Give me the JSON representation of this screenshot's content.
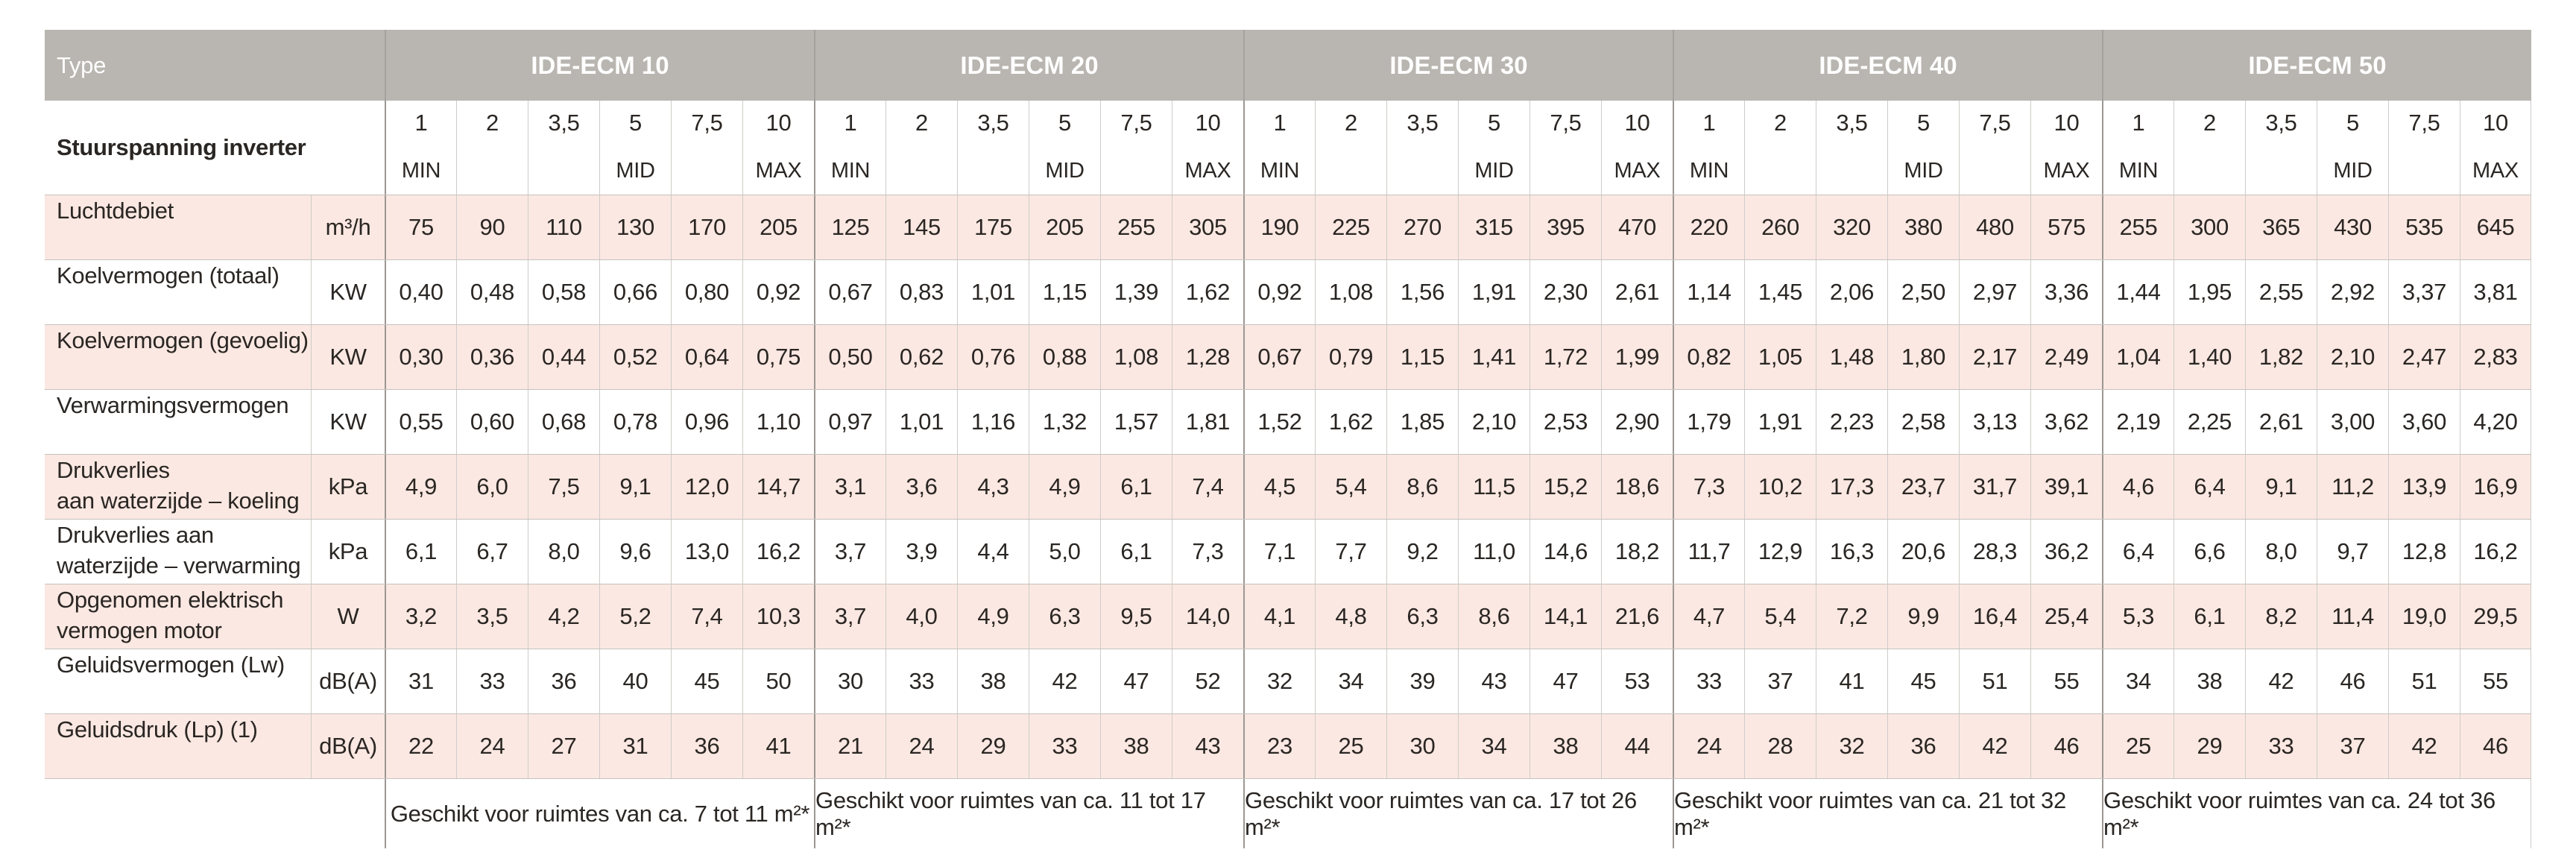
{
  "colors": {
    "header_bg": "#b9b5b0",
    "row_tint": "#fbe8e2",
    "strong_rule": "#9c9893",
    "light_rule": "#cfccc8",
    "text": "#2a2623",
    "header_text": "#ffffff"
  },
  "table": {
    "corner_label": "Type",
    "inverter_row_label": "Stuurspanning inverter",
    "speeds": [
      "1",
      "2",
      "3,5",
      "5",
      "7,5",
      "10"
    ],
    "speed_marks": [
      "MIN",
      "",
      "",
      "MID",
      "",
      "MAX"
    ],
    "groups": [
      "IDE-ECM 10",
      "IDE-ECM 20",
      "IDE-ECM 30",
      "IDE-ECM 40",
      "IDE-ECM 50"
    ],
    "rows": [
      {
        "label_lines": [
          "Luchtdebiet"
        ],
        "unit": "m³/h",
        "values": [
          [
            "75",
            "90",
            "110",
            "130",
            "170",
            "205"
          ],
          [
            "125",
            "145",
            "175",
            "205",
            "255",
            "305"
          ],
          [
            "190",
            "225",
            "270",
            "315",
            "395",
            "470"
          ],
          [
            "220",
            "260",
            "320",
            "380",
            "480",
            "575"
          ],
          [
            "255",
            "300",
            "365",
            "430",
            "535",
            "645"
          ]
        ]
      },
      {
        "label_lines": [
          "Koelvermogen (totaal)"
        ],
        "unit": "KW",
        "values": [
          [
            "0,40",
            "0,48",
            "0,58",
            "0,66",
            "0,80",
            "0,92"
          ],
          [
            "0,67",
            "0,83",
            "1,01",
            "1,15",
            "1,39",
            "1,62"
          ],
          [
            "0,92",
            "1,08",
            "1,56",
            "1,91",
            "2,30",
            "2,61"
          ],
          [
            "1,14",
            "1,45",
            "2,06",
            "2,50",
            "2,97",
            "3,36"
          ],
          [
            "1,44",
            "1,95",
            "2,55",
            "2,92",
            "3,37",
            "3,81"
          ]
        ]
      },
      {
        "label_lines": [
          "Koelvermogen (gevoelig)"
        ],
        "unit": "KW",
        "values": [
          [
            "0,30",
            "0,36",
            "0,44",
            "0,52",
            "0,64",
            "0,75"
          ],
          [
            "0,50",
            "0,62",
            "0,76",
            "0,88",
            "1,08",
            "1,28"
          ],
          [
            "0,67",
            "0,79",
            "1,15",
            "1,41",
            "1,72",
            "1,99"
          ],
          [
            "0,82",
            "1,05",
            "1,48",
            "1,80",
            "2,17",
            "2,49"
          ],
          [
            "1,04",
            "1,40",
            "1,82",
            "2,10",
            "2,47",
            "2,83"
          ]
        ]
      },
      {
        "label_lines": [
          "Verwarmingsvermogen"
        ],
        "unit": "KW",
        "values": [
          [
            "0,55",
            "0,60",
            "0,68",
            "0,78",
            "0,96",
            "1,10"
          ],
          [
            "0,97",
            "1,01",
            "1,16",
            "1,32",
            "1,57",
            "1,81"
          ],
          [
            "1,52",
            "1,62",
            "1,85",
            "2,10",
            "2,53",
            "2,90"
          ],
          [
            "1,79",
            "1,91",
            "2,23",
            "2,58",
            "3,13",
            "3,62"
          ],
          [
            "2,19",
            "2,25",
            "2,61",
            "3,00",
            "3,60",
            "4,20"
          ]
        ]
      },
      {
        "label_lines": [
          "Drukverlies",
          "aan waterzijde – koeling"
        ],
        "unit": "kPa",
        "values": [
          [
            "4,9",
            "6,0",
            "7,5",
            "9,1",
            "12,0",
            "14,7"
          ],
          [
            "3,1",
            "3,6",
            "4,3",
            "4,9",
            "6,1",
            "7,4"
          ],
          [
            "4,5",
            "5,4",
            "8,6",
            "11,5",
            "15,2",
            "18,6"
          ],
          [
            "7,3",
            "10,2",
            "17,3",
            "23,7",
            "31,7",
            "39,1"
          ],
          [
            "4,6",
            "6,4",
            "9,1",
            "11,2",
            "13,9",
            "16,9"
          ]
        ]
      },
      {
        "label_lines": [
          "Drukverlies aan",
          "waterzijde – verwarming"
        ],
        "unit": "kPa",
        "values": [
          [
            "6,1",
            "6,7",
            "8,0",
            "9,6",
            "13,0",
            "16,2"
          ],
          [
            "3,7",
            "3,9",
            "4,4",
            "5,0",
            "6,1",
            "7,3"
          ],
          [
            "7,1",
            "7,7",
            "9,2",
            "11,0",
            "14,6",
            "18,2"
          ],
          [
            "11,7",
            "12,9",
            "16,3",
            "20,6",
            "28,3",
            "36,2"
          ],
          [
            "6,4",
            "6,6",
            "8,0",
            "9,7",
            "12,8",
            "16,2"
          ]
        ]
      },
      {
        "label_lines": [
          "Opgenomen elektrisch",
          "vermogen motor"
        ],
        "unit": "W",
        "values": [
          [
            "3,2",
            "3,5",
            "4,2",
            "5,2",
            "7,4",
            "10,3"
          ],
          [
            "3,7",
            "4,0",
            "4,9",
            "6,3",
            "9,5",
            "14,0"
          ],
          [
            "4,1",
            "4,8",
            "6,3",
            "8,6",
            "14,1",
            "21,6"
          ],
          [
            "4,7",
            "5,4",
            "7,2",
            "9,9",
            "16,4",
            "25,4"
          ],
          [
            "5,3",
            "6,1",
            "8,2",
            "11,4",
            "19,0",
            "29,5"
          ]
        ]
      },
      {
        "label_lines": [
          "Geluidsvermogen (Lw)"
        ],
        "unit": "dB(A)",
        "values": [
          [
            "31",
            "33",
            "36",
            "40",
            "45",
            "50"
          ],
          [
            "30",
            "33",
            "38",
            "42",
            "47",
            "52"
          ],
          [
            "32",
            "34",
            "39",
            "43",
            "47",
            "53"
          ],
          [
            "33",
            "37",
            "41",
            "45",
            "51",
            "55"
          ],
          [
            "34",
            "38",
            "42",
            "46",
            "51",
            "55"
          ]
        ]
      },
      {
        "label_lines": [
          "Geluidsdruk (Lp) (1)"
        ],
        "unit": "dB(A)",
        "values": [
          [
            "22",
            "24",
            "27",
            "31",
            "36",
            "41"
          ],
          [
            "21",
            "24",
            "29",
            "33",
            "38",
            "43"
          ],
          [
            "23",
            "25",
            "30",
            "34",
            "38",
            "44"
          ],
          [
            "24",
            "28",
            "32",
            "36",
            "42",
            "46"
          ],
          [
            "25",
            "29",
            "33",
            "37",
            "42",
            "46"
          ]
        ]
      }
    ],
    "footers": [
      "Geschikt voor ruimtes van ca. 7 tot 11 m²*",
      "Geschikt voor ruimtes van ca. 11 tot 17 m²*",
      "Geschikt voor ruimtes van ca. 17 tot 26 m²*",
      "Geschikt voor ruimtes van ca. 21 tot 32 m²*",
      "Geschikt voor ruimtes van ca. 24 tot 36 m²*"
    ]
  }
}
